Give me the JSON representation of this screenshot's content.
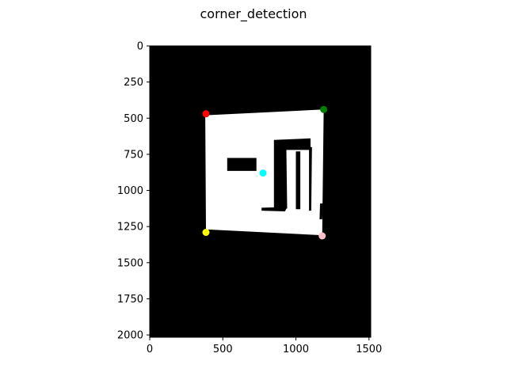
{
  "title": "corner_detection",
  "chart_data": {
    "type": "scatter",
    "title": "corner_detection",
    "background": "image",
    "xlim": [
      0,
      1512
    ],
    "ylim": [
      2016,
      0
    ],
    "x_ticks": [
      0,
      500,
      1000,
      1500
    ],
    "y_ticks": [
      0,
      250,
      500,
      750,
      1000,
      1250,
      1500,
      1750,
      2000
    ],
    "image_colors": {
      "background": "#000000",
      "shape": "#ffffff"
    },
    "shape_polygon": [
      [
        380,
        480
      ],
      [
        1190,
        440
      ],
      [
        1180,
        1310
      ],
      [
        385,
        1270
      ]
    ],
    "inner_regions": [
      {
        "points": [
          [
            530,
            775
          ],
          [
            730,
            775
          ],
          [
            730,
            865
          ],
          [
            530,
            865
          ]
        ]
      },
      {
        "points": [
          [
            850,
            650
          ],
          [
            1100,
            640
          ],
          [
            1100,
            720
          ],
          [
            935,
            720
          ],
          [
            940,
            1125
          ],
          [
            850,
            1140
          ]
        ]
      },
      {
        "points": [
          [
            1000,
            730
          ],
          [
            1030,
            730
          ],
          [
            1030,
            1130
          ],
          [
            1000,
            1130
          ]
        ]
      },
      {
        "points": [
          [
            1090,
            700
          ],
          [
            1110,
            700
          ],
          [
            1105,
            1140
          ],
          [
            1090,
            1140
          ]
        ]
      },
      {
        "points": [
          [
            765,
            1120
          ],
          [
            940,
            1115
          ],
          [
            925,
            1145
          ],
          [
            765,
            1140
          ]
        ]
      },
      {
        "points": [
          [
            1165,
            1090
          ],
          [
            1185,
            1090
          ],
          [
            1180,
            1200
          ],
          [
            1162,
            1200
          ]
        ]
      }
    ],
    "points": [
      {
        "x": 385,
        "y": 470,
        "color": "#ff0000"
      },
      {
        "x": 1190,
        "y": 440,
        "color": "#008000"
      },
      {
        "x": 775,
        "y": 880,
        "color": "#00ffff"
      },
      {
        "x": 385,
        "y": 1290,
        "color": "#ffff00"
      },
      {
        "x": 1180,
        "y": 1315,
        "color": "#ffc0cb"
      }
    ]
  }
}
